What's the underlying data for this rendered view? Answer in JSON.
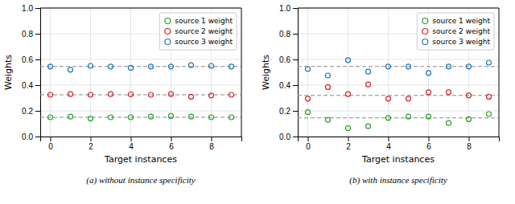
{
  "chart_data": [
    {
      "type": "scatter",
      "title": "(a) without instance specificity",
      "xlabel": "Target instances",
      "ylabel": "Weights",
      "x": [
        0,
        1,
        2,
        3,
        4,
        5,
        6,
        7,
        8,
        9
      ],
      "series": [
        {
          "name": "source 1 weight",
          "color": "#2ca02c",
          "values": [
            0.15,
            0.155,
            0.14,
            0.15,
            0.15,
            0.155,
            0.16,
            0.155,
            0.15,
            0.15
          ]
        },
        {
          "name": "source 2 weight",
          "color": "#d62728",
          "values": [
            0.325,
            0.33,
            0.325,
            0.33,
            0.328,
            0.325,
            0.33,
            0.31,
            0.32,
            0.325
          ]
        },
        {
          "name": "source 3 weight",
          "color": "#1f77b4",
          "values": [
            0.545,
            0.52,
            0.55,
            0.545,
            0.535,
            0.545,
            0.545,
            0.555,
            0.55,
            0.545
          ]
        }
      ],
      "hlines": {
        "values": [
          0.15,
          0.325,
          0.545
        ],
        "color": "#888888",
        "line_style": "dashed"
      },
      "marker": "open-circle",
      "xlim": [
        -0.5,
        9.5
      ],
      "ylim": [
        0.0,
        1.0
      ],
      "xticks": [
        0,
        2,
        4,
        6,
        8
      ],
      "yticks": [
        {
          "value": 0.0,
          "label": "0.0"
        },
        0.2,
        0.4,
        0.6,
        0.8,
        {
          "value": 1.0,
          "label": "1.0"
        }
      ],
      "grid": true,
      "legend": "upper right"
    },
    {
      "type": "scatter",
      "title": "(b) with instance specificity",
      "xlabel": "Target instances",
      "ylabel": "Weights",
      "x": [
        0,
        1,
        2,
        3,
        4,
        5,
        6,
        7,
        8,
        9
      ],
      "series": [
        {
          "name": "source 1 weight",
          "color": "#2ca02c",
          "values": [
            0.19,
            0.13,
            0.065,
            0.08,
            0.145,
            0.155,
            0.155,
            0.105,
            0.135,
            0.175
          ]
        },
        {
          "name": "source 2 weight",
          "color": "#d62728",
          "values": [
            0.295,
            0.385,
            0.33,
            0.405,
            0.295,
            0.295,
            0.345,
            0.345,
            0.32,
            0.31
          ]
        },
        {
          "name": "source 3 weight",
          "color": "#1f77b4",
          "values": [
            0.525,
            0.475,
            0.595,
            0.505,
            0.545,
            0.545,
            0.495,
            0.545,
            0.545,
            0.575
          ]
        }
      ],
      "hlines": {
        "values": [
          0.145,
          0.32,
          0.545
        ],
        "color": "#888888",
        "line_style": "dashed"
      },
      "marker": "open-circle",
      "xlim": [
        -0.5,
        9.5
      ],
      "ylim": [
        0.0,
        1.0
      ],
      "xticks": [
        0,
        2,
        4,
        6,
        8
      ],
      "yticks": [
        {
          "value": 0.0,
          "label": "0.0"
        },
        0.2,
        0.4,
        0.6,
        0.8,
        {
          "value": 1.0,
          "label": "1.0"
        }
      ],
      "grid": true,
      "legend": "upper right"
    }
  ]
}
